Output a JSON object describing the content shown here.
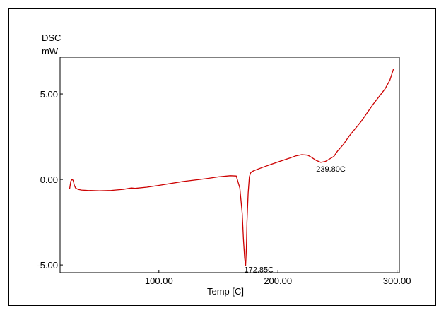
{
  "chart_data": {
    "type": "line",
    "xlabel": "Temp  [C]",
    "ylabel_lines": [
      "DSC",
      "mW"
    ],
    "xlim": [
      17,
      302
    ],
    "ylim": [
      -5.45,
      7.15
    ],
    "x_ticks": [
      100,
      200,
      300
    ],
    "x_tick_labels": [
      "100.00",
      "200.00",
      "300.00"
    ],
    "y_ticks": [
      5,
      0,
      -5
    ],
    "y_tick_labels": [
      "5.00",
      "0.00",
      "-5.00"
    ],
    "grid": false,
    "legend": "none",
    "line_color": "#cc0000",
    "series": [
      {
        "x": [
          25,
          26,
          27,
          28,
          29,
          30,
          32,
          35,
          40,
          50,
          60,
          70,
          75,
          77,
          80,
          90,
          100,
          120,
          140,
          150,
          160,
          165,
          168,
          170,
          171,
          172,
          172.85,
          173.5,
          174,
          175,
          176,
          177,
          178,
          180,
          185,
          190,
          200,
          210,
          215,
          220,
          225,
          228,
          232,
          236,
          239.8,
          243,
          247,
          250,
          255,
          260,
          270,
          280,
          285,
          290,
          294,
          297
        ],
        "y": [
          -0.55,
          -0.1,
          0.0,
          -0.05,
          -0.35,
          -0.5,
          -0.58,
          -0.62,
          -0.64,
          -0.66,
          -0.64,
          -0.58,
          -0.52,
          -0.5,
          -0.52,
          -0.45,
          -0.35,
          -0.12,
          0.05,
          0.15,
          0.22,
          0.2,
          -0.5,
          -2.0,
          -3.5,
          -4.6,
          -5.05,
          -4.0,
          -2.5,
          -0.8,
          0.15,
          0.38,
          0.45,
          0.52,
          0.65,
          0.78,
          1.02,
          1.25,
          1.38,
          1.45,
          1.42,
          1.3,
          1.12,
          1.0,
          1.05,
          1.18,
          1.35,
          1.65,
          2.05,
          2.55,
          3.4,
          4.4,
          4.85,
          5.3,
          5.8,
          6.45
        ]
      }
    ],
    "annotations": [
      {
        "text": "239.80C",
        "x": 239.8,
        "y": 1.0
      },
      {
        "text": "172.85C",
        "x": 172.85,
        "y": -5.05
      }
    ]
  }
}
